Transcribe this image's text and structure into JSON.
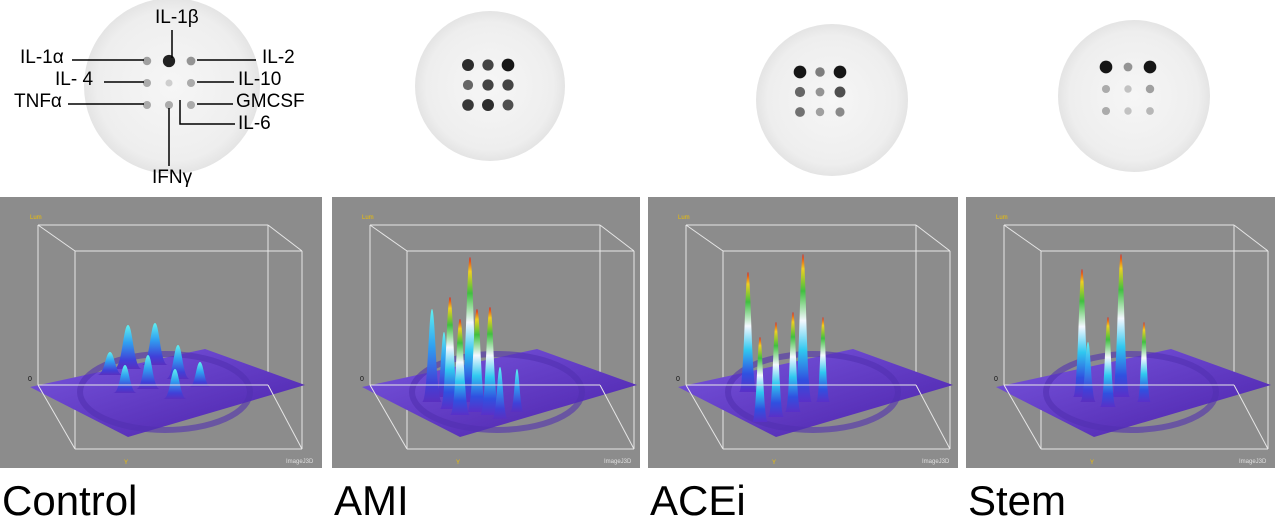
{
  "blot_labels": {
    "il1b": "IL-1β",
    "il1a": "IL-1α",
    "il2": "IL-2",
    "il4": "IL- 4",
    "il10": "IL-10",
    "tnfa": "TNFα",
    "gmcsf": "GMCSF",
    "il6": "IL-6",
    "ifng": "IFNγ"
  },
  "panels": [
    {
      "label": "Control",
      "axis_label": "Lum",
      "zero": "0",
      "y_label": "Y",
      "watermark": "ImageJ3D"
    },
    {
      "label": "AMI",
      "axis_label": "Lum",
      "zero": "0",
      "y_label": "Y",
      "watermark": "ImageJ3D"
    },
    {
      "label": "ACEi",
      "axis_label": "Lum",
      "zero": "0",
      "y_label": "Y",
      "watermark": "ImageJ3D"
    },
    {
      "label": "Stem",
      "axis_label": "Lum",
      "zero": "0",
      "y_label": "Y",
      "watermark": "ImageJ3D"
    }
  ]
}
